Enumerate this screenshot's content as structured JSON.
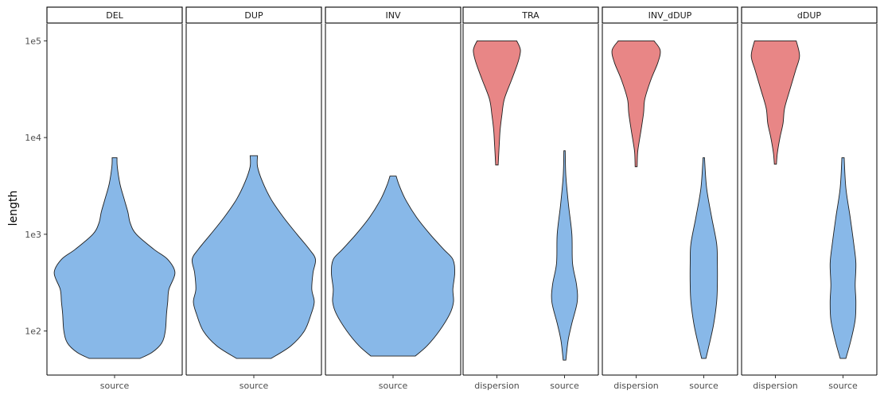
{
  "chart_data": {
    "type": "violin",
    "ylabel": "length",
    "xlabel": "",
    "y_scale": "log10",
    "ylim": [
      35,
      150000
    ],
    "y_ticks": [
      {
        "value": 100,
        "label": "1e2"
      },
      {
        "value": 1000,
        "label": "1e3"
      },
      {
        "value": 10000,
        "label": "1e4"
      },
      {
        "value": 100000,
        "label": "1e5"
      }
    ],
    "grid": false,
    "legend": "none",
    "colors": {
      "source": "#88b8e8",
      "dispersion": "#e88686",
      "outline": "#1f1f1f"
    },
    "panels": [
      {
        "label": "DEL",
        "categories": [
          "source"
        ],
        "violins": [
          {
            "category": "source",
            "min": 52,
            "max": 6200,
            "width": 0.95,
            "profile": [
              [
                52,
                0.42
              ],
              [
                60,
                0.62
              ],
              [
                75,
                0.78
              ],
              [
                100,
                0.84
              ],
              [
                150,
                0.86
              ],
              [
                200,
                0.88
              ],
              [
                270,
                0.9
              ],
              [
                400,
                1.0
              ],
              [
                550,
                0.88
              ],
              [
                700,
                0.65
              ],
              [
                1000,
                0.36
              ],
              [
                1300,
                0.26
              ],
              [
                1700,
                0.22
              ],
              [
                2300,
                0.16
              ],
              [
                3300,
                0.09
              ],
              [
                5000,
                0.045
              ],
              [
                6200,
                0.04
              ]
            ]
          }
        ]
      },
      {
        "label": "DUP",
        "categories": [
          "source"
        ],
        "violins": [
          {
            "category": "source",
            "min": 52,
            "max": 6500,
            "width": 0.97,
            "profile": [
              [
                52,
                0.28
              ],
              [
                70,
                0.6
              ],
              [
                100,
                0.82
              ],
              [
                150,
                0.93
              ],
              [
                200,
                0.98
              ],
              [
                270,
                0.94
              ],
              [
                400,
                0.96
              ],
              [
                550,
                1.0
              ],
              [
                700,
                0.9
              ],
              [
                1000,
                0.7
              ],
              [
                1500,
                0.48
              ],
              [
                2300,
                0.28
              ],
              [
                3500,
                0.14
              ],
              [
                5000,
                0.06
              ],
              [
                6500,
                0.06
              ]
            ]
          }
        ]
      },
      {
        "label": "INV",
        "categories": [
          "source"
        ],
        "violins": [
          {
            "category": "source",
            "min": 55,
            "max": 4000,
            "width": 0.97,
            "profile": [
              [
                55,
                0.36
              ],
              [
                70,
                0.55
              ],
              [
                100,
                0.75
              ],
              [
                150,
                0.92
              ],
              [
                200,
                0.98
              ],
              [
                270,
                0.97
              ],
              [
                400,
                1.0
              ],
              [
                550,
                0.97
              ],
              [
                700,
                0.82
              ],
              [
                1000,
                0.6
              ],
              [
                1500,
                0.38
              ],
              [
                2300,
                0.2
              ],
              [
                3200,
                0.1
              ],
              [
                4000,
                0.05
              ]
            ]
          }
        ]
      },
      {
        "label": "TRA",
        "categories": [
          "dispersion",
          "source"
        ],
        "violins": [
          {
            "category": "dispersion",
            "min": 5200,
            "max": 100000,
            "width": 0.78,
            "profile": [
              [
                5200,
                0.05
              ],
              [
                6500,
                0.07
              ],
              [
                9000,
                0.1
              ],
              [
                12000,
                0.13
              ],
              [
                17000,
                0.2
              ],
              [
                25000,
                0.3
              ],
              [
                40000,
                0.6
              ],
              [
                60000,
                0.85
              ],
              [
                80000,
                0.95
              ],
              [
                100000,
                0.8
              ]
            ]
          },
          {
            "category": "source",
            "min": 50,
            "max": 7300,
            "width": 0.42,
            "profile": [
              [
                50,
                0.1
              ],
              [
                80,
                0.27
              ],
              [
                120,
                0.55
              ],
              [
                200,
                0.95
              ],
              [
                300,
                0.9
              ],
              [
                500,
                0.6
              ],
              [
                1000,
                0.55
              ],
              [
                2000,
                0.3
              ],
              [
                4000,
                0.1
              ],
              [
                7300,
                0.05
              ]
            ]
          }
        ]
      },
      {
        "label": "INV_dDUP",
        "categories": [
          "dispersion",
          "source"
        ],
        "violins": [
          {
            "category": "dispersion",
            "min": 5000,
            "max": 100000,
            "width": 0.78,
            "profile": [
              [
                5000,
                0.04
              ],
              [
                7000,
                0.06
              ],
              [
                9000,
                0.12
              ],
              [
                12000,
                0.2
              ],
              [
                18000,
                0.3
              ],
              [
                25000,
                0.35
              ],
              [
                40000,
                0.6
              ],
              [
                60000,
                0.88
              ],
              [
                80000,
                0.97
              ],
              [
                100000,
                0.72
              ]
            ]
          },
          {
            "category": "source",
            "min": 52,
            "max": 6200,
            "width": 0.45,
            "profile": [
              [
                52,
                0.15
              ],
              [
                80,
                0.45
              ],
              [
                120,
                0.7
              ],
              [
                200,
                0.9
              ],
              [
                300,
                0.95
              ],
              [
                500,
                0.95
              ],
              [
                800,
                0.9
              ],
              [
                1500,
                0.55
              ],
              [
                3000,
                0.2
              ],
              [
                6200,
                0.05
              ]
            ]
          }
        ]
      },
      {
        "label": "dDUP",
        "categories": [
          "dispersion",
          "source"
        ],
        "violins": [
          {
            "category": "dispersion",
            "min": 5300,
            "max": 100000,
            "width": 0.8,
            "profile": [
              [
                5300,
                0.04
              ],
              [
                7000,
                0.08
              ],
              [
                10000,
                0.18
              ],
              [
                14000,
                0.3
              ],
              [
                20000,
                0.36
              ],
              [
                30000,
                0.55
              ],
              [
                50000,
                0.8
              ],
              [
                70000,
                0.95
              ],
              [
                100000,
                0.82
              ]
            ]
          },
          {
            "category": "source",
            "min": 52,
            "max": 6200,
            "width": 0.45,
            "profile": [
              [
                52,
                0.2
              ],
              [
                80,
                0.55
              ],
              [
                130,
                0.85
              ],
              [
                200,
                0.9
              ],
              [
                300,
                0.85
              ],
              [
                500,
                0.9
              ],
              [
                800,
                0.75
              ],
              [
                1500,
                0.5
              ],
              [
                3000,
                0.2
              ],
              [
                6200,
                0.08
              ]
            ]
          }
        ]
      }
    ]
  }
}
